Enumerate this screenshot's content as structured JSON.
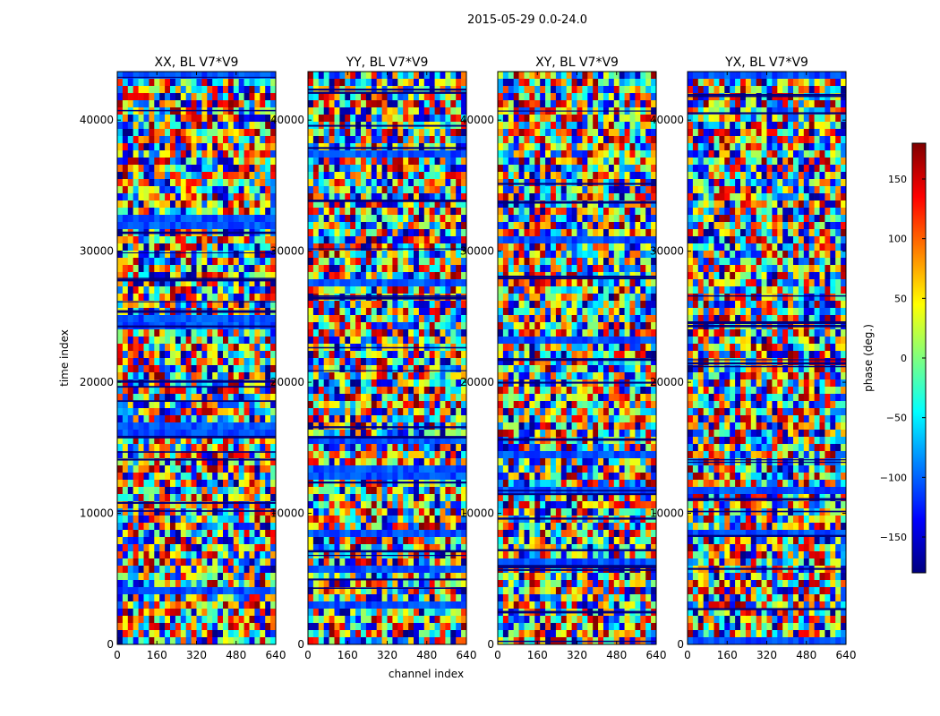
{
  "chart_data": {
    "type": "heatmap",
    "suptitle": "2015-05-29 0.0-24.0",
    "xlabel": "channel index",
    "ylabel": "time index",
    "xlim": [
      0,
      640
    ],
    "ylim": [
      0,
      43700
    ],
    "xticks": [
      "0",
      "160",
      "320",
      "480",
      "640"
    ],
    "yticks": [
      "0",
      "10000",
      "20000",
      "30000",
      "40000"
    ],
    "colorbar": {
      "label": "phase (deg.)",
      "colormap": "jet",
      "range": [
        -180,
        180
      ],
      "ticks": [
        "−150",
        "−100",
        "−50",
        "0",
        "50",
        "100",
        "150"
      ],
      "colors": [
        "#00007f",
        "#0000ff",
        "#007fff",
        "#00ffff",
        "#7fff7f",
        "#ffff00",
        "#ff7f00",
        "#ff0000",
        "#7f0000"
      ]
    },
    "panels": [
      {
        "title": "XX, BL V7*V9"
      },
      {
        "title": "YY, BL V7*V9"
      },
      {
        "title": "XY, BL V7*V9"
      },
      {
        "title": "YX, BL V7*V9"
      }
    ]
  }
}
